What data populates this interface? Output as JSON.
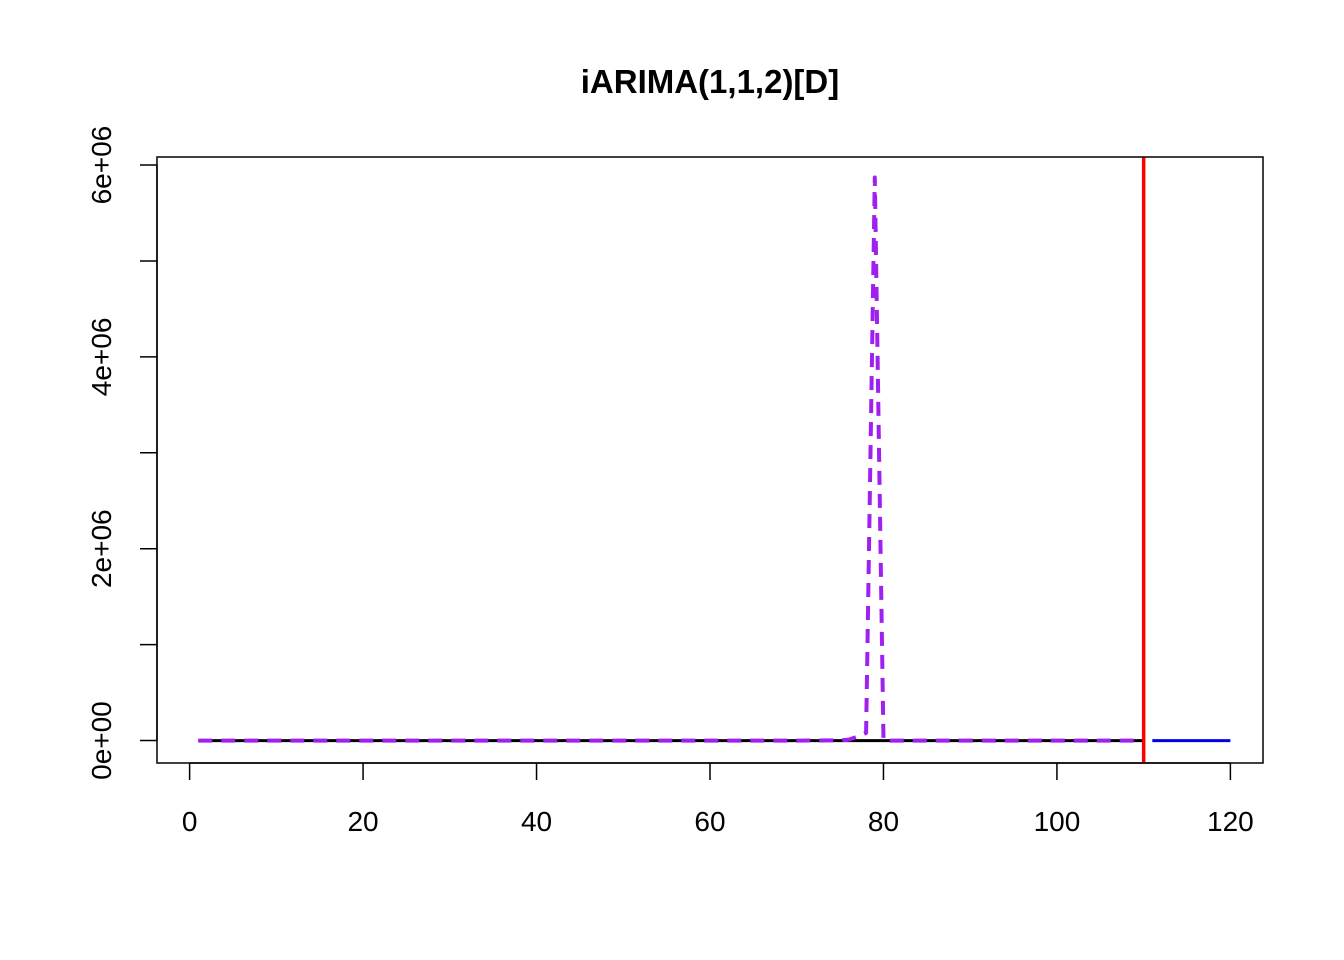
{
  "chart_data": {
    "type": "line",
    "title": "iARIMA(1,1,2)[D]",
    "xlabel": "",
    "ylabel": "",
    "xlim": [
      -3.76,
      123.76
    ],
    "ylim": [
      -234000,
      6084000
    ],
    "x_ticks": [
      0,
      20,
      40,
      60,
      80,
      100,
      120
    ],
    "x_tick_labels": [
      "0",
      "20",
      "40",
      "60",
      "80",
      "100",
      "120"
    ],
    "y_ticks": [
      0,
      1000000,
      2000000,
      3000000,
      4000000,
      5000000,
      6000000
    ],
    "y_tick_labels": [
      "0e+00",
      "",
      "2e+06",
      "",
      "4e+06",
      "",
      "6e+06"
    ],
    "grid": false,
    "vline": {
      "x": 110,
      "color": "#ff0000"
    },
    "series": [
      {
        "style": "solid",
        "color": "#000000",
        "x": [
          1,
          110
        ],
        "y": [
          0,
          0
        ]
      },
      {
        "style": "solid",
        "color": "#0000ee",
        "x": [
          111,
          120
        ],
        "y": [
          0,
          0
        ]
      },
      {
        "style": "dashed",
        "color": "#a020f0",
        "x": [
          1,
          10,
          20,
          30,
          40,
          50,
          60,
          70,
          75,
          76,
          77,
          78,
          79,
          80,
          81,
          90,
          100,
          110
        ],
        "y": [
          0,
          0,
          0,
          0,
          0,
          0,
          0,
          0,
          2000,
          10000,
          40000,
          80000,
          5870000,
          0,
          0,
          0,
          0,
          0
        ]
      }
    ]
  }
}
